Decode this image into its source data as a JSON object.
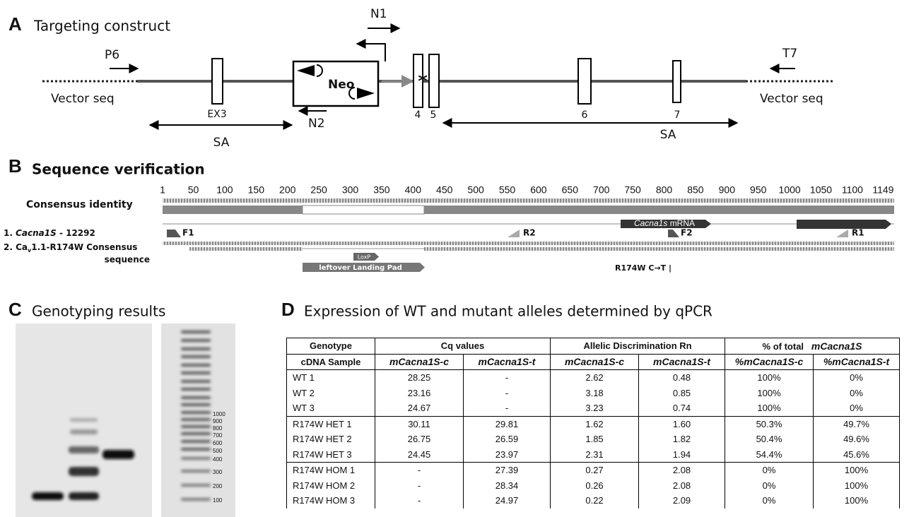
{
  "panel_a": {
    "letter": "A",
    "title": "Targeting construct",
    "primers": {
      "p6": "P6",
      "t7": "T7",
      "n1": "N1",
      "n2": "N2"
    },
    "vector_left": "Vector seq",
    "vector_right": "Vector seq",
    "neo": "Neo",
    "exons": [
      "EX3",
      "4",
      "5",
      "6",
      "7"
    ],
    "arm_left": "SA",
    "arm_right": "SA"
  },
  "panel_b": {
    "letter": "B",
    "title": "Sequence verification",
    "ruler": [
      1,
      50,
      100,
      150,
      200,
      250,
      300,
      350,
      400,
      450,
      500,
      550,
      600,
      650,
      700,
      750,
      800,
      850,
      900,
      950,
      1000,
      1050,
      1100,
      1149
    ],
    "consensus_label": "Consensus identity",
    "track_1": {
      "prefix": "1.",
      "gene": "Cacna1S",
      "suffix": "- 12292"
    },
    "track_2": {
      "prefix": "2. Ca",
      "subscript": "v",
      "suffix": "1.1-R174W Consensus",
      "line_2": "sequence"
    },
    "primers": [
      "F1",
      "R2",
      "F2",
      "R1"
    ],
    "mrna": {
      "gene": "Cacna1s",
      "suffix": "mRNA"
    },
    "loxp": "LoxP",
    "landing_pad": "leftover Landing Pad",
    "mutation": "R174W C→T |"
  },
  "panel_c": {
    "letter": "C",
    "title": "Genotyping results",
    "ladder": [
      1000,
      900,
      800,
      700,
      600,
      500,
      400,
      300,
      200,
      100
    ]
  },
  "panel_d": {
    "letter": "D",
    "title": "Expression of WT and mutant alleles determined by qPCR",
    "table": {
      "header_1": {
        "genotype": "Genotype",
        "cq": "Cq values",
        "rn": "Allelic Discrimination Rn",
        "total_prefix": "% of total",
        "total_gene": "mCacna1S"
      },
      "header_2": [
        "cDNA Sample",
        "mCacna1S-c",
        "mCacna1S-t",
        "mCacna1S-c",
        "mCacna1S-t",
        "%mCacna1S-c",
        "%mCacna1S-t"
      ],
      "rows": [
        [
          "WT 1",
          "28.25",
          "-",
          "2.62",
          "0.48",
          "100%",
          "0%"
        ],
        [
          "WT 2",
          "23.16",
          "-",
          "3.18",
          "0.85",
          "100%",
          "0%"
        ],
        [
          "WT 3",
          "24.67",
          "-",
          "3.23",
          "0.74",
          "100%",
          "0%"
        ],
        [
          "R174W HET 1",
          "30.11",
          "29.81",
          "1.62",
          "1.60",
          "50.3%",
          "49.7%"
        ],
        [
          "R174W HET 2",
          "26.75",
          "26.59",
          "1.85",
          "1.82",
          "50.4%",
          "49.6%"
        ],
        [
          "R174W HET 3",
          "24.45",
          "23.97",
          "2.31",
          "1.94",
          "54.4%",
          "45.6%"
        ],
        [
          "R174W HOM 1",
          "-",
          "27.39",
          "0.27",
          "2.08",
          "0%",
          "100%"
        ],
        [
          "R174W HOM 2",
          "-",
          "28.34",
          "0.26",
          "2.08",
          "0%",
          "100%"
        ],
        [
          "R174W HOM 3",
          "-",
          "24.97",
          "0.22",
          "2.09",
          "0%",
          "100%"
        ]
      ]
    }
  }
}
